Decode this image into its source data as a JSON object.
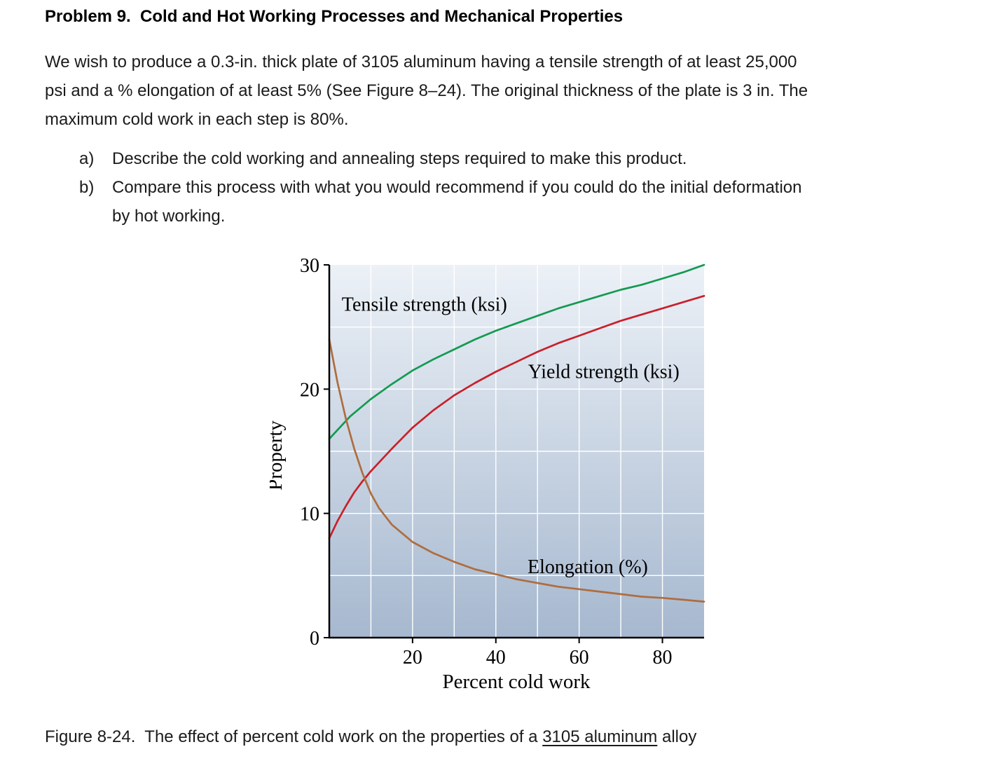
{
  "problem": {
    "title": "Problem 9.  Cold and Hot Working Processes and Mechanical Properties",
    "body": "We wish to produce a 0.3-in. thick plate of 3105 aluminum having a tensile strength of at least 25,000\npsi and a % elongation of at least 5% (See Figure 8–24). The original thickness of the plate is 3 in. The\nmaximum cold work in each step is 80%.",
    "items": [
      {
        "marker": "a)",
        "text": "Describe the cold working and annealing steps required to make this product."
      },
      {
        "marker": "b)",
        "text": "Compare this process with what you would recommend if you could do the initial deformation\nby hot working."
      }
    ]
  },
  "figure": {
    "caption_prefix": "Figure 8-24.  The effect of percent cold work on the properties of a ",
    "caption_link": "3105 aluminum",
    "caption_suffix": " alloy"
  },
  "chart_data": {
    "type": "line",
    "title": "",
    "xlabel": "Percent cold work",
    "ylabel": "Property",
    "xlim": [
      0,
      90
    ],
    "ylim": [
      0,
      30
    ],
    "x_ticks": [
      20,
      40,
      60,
      80
    ],
    "y_ticks": [
      0,
      10,
      20,
      30
    ],
    "x_gridlines": [
      10,
      20,
      30,
      40,
      50,
      60,
      70,
      80
    ],
    "y_gridlines": [
      5,
      10,
      15,
      20,
      25
    ],
    "grid": true,
    "legend": "inline-labels",
    "background_gradient": [
      "#ecf1f7",
      "#a6b8cf"
    ],
    "series": [
      {
        "name": "Tensile strength (ksi)",
        "color": "#149a51",
        "x": [
          0,
          5,
          10,
          15,
          20,
          25,
          30,
          35,
          40,
          45,
          50,
          55,
          60,
          65,
          70,
          75,
          80,
          85,
          90
        ],
        "values": [
          16,
          17.8,
          19.2,
          20.4,
          21.5,
          22.4,
          23.2,
          24,
          24.7,
          25.3,
          25.9,
          26.5,
          27,
          27.5,
          28,
          28.4,
          28.9,
          29.4,
          30
        ],
        "label_at": [
          3,
          26.3
        ]
      },
      {
        "name": "Yield strength (ksi)",
        "color": "#c9202a",
        "x": [
          0,
          2,
          4,
          6,
          8,
          10,
          15,
          20,
          25,
          30,
          35,
          40,
          45,
          50,
          55,
          60,
          65,
          70,
          75,
          80,
          85,
          90
        ],
        "values": [
          8,
          9.4,
          10.6,
          11.7,
          12.6,
          13.4,
          15.2,
          16.9,
          18.3,
          19.5,
          20.5,
          21.4,
          22.2,
          23,
          23.7,
          24.3,
          24.9,
          25.5,
          26,
          26.5,
          27,
          27.5
        ],
        "label_at": [
          47.7,
          20.9
        ]
      },
      {
        "name": "Elongation (%)",
        "color": "#ae6d3e",
        "x": [
          0,
          2,
          4,
          6,
          8,
          10,
          12,
          15,
          20,
          25,
          30,
          35,
          40,
          45,
          50,
          55,
          60,
          65,
          70,
          75,
          80,
          85,
          90
        ],
        "values": [
          24,
          20.5,
          17.6,
          15.2,
          13.2,
          11.6,
          10.4,
          9.1,
          7.7,
          6.8,
          6.1,
          5.5,
          5.1,
          4.7,
          4.4,
          4.1,
          3.9,
          3.7,
          3.5,
          3.3,
          3.2,
          3.05,
          2.9
        ],
        "label_at": [
          47.6,
          5.2
        ]
      }
    ]
  }
}
